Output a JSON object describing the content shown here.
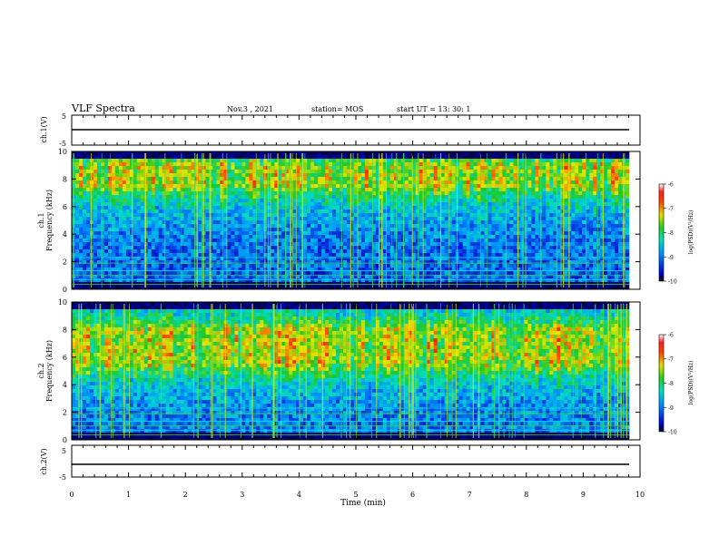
{
  "header": {
    "title": "VLF Spectra",
    "date": "Nov.3 , 2021",
    "station": "station= MOS",
    "start": "start UT = 13: 30: 1"
  },
  "chart_data": [
    {
      "type": "line",
      "name": "waveform-ch1",
      "ylabel": "ch.1(V)",
      "ylim": [
        -5,
        5
      ],
      "yticks": [
        "5",
        "-5"
      ],
      "xlim": [
        0,
        10
      ],
      "values_level": 0
    },
    {
      "type": "heatmap",
      "name": "spectrogram-ch1",
      "ylabel_line1": "ch.1",
      "ylabel_line2": "Frequency (kHz)",
      "ylim": [
        0,
        10
      ],
      "yticks": [
        "0",
        "2",
        "4",
        "6",
        "8",
        "10"
      ],
      "xlim": [
        0,
        9.82
      ],
      "colorbar": {
        "label": "log(PSD)(V²/Hz)",
        "range": [
          -10,
          -6
        ],
        "ticks": [
          "-6",
          "-7",
          "-8",
          "-9",
          "-10"
        ]
      },
      "dominant_band_khz": [
        7.5,
        9.0
      ]
    },
    {
      "type": "heatmap",
      "name": "spectrogram-ch2",
      "ylabel_line1": "ch.2",
      "ylabel_line2": "Frequency (kHz)",
      "ylim": [
        0,
        10
      ],
      "yticks": [
        "0",
        "2",
        "4",
        "6",
        "8",
        "10"
      ],
      "xlim": [
        0,
        9.82
      ],
      "colorbar": {
        "label": "log(PSD)(V²/Hz)",
        "range": [
          -10,
          -6
        ],
        "ticks": [
          "-6",
          "-7",
          "-8",
          "-9",
          "-10"
        ]
      },
      "dominant_band_khz": [
        5.5,
        8.0
      ]
    },
    {
      "type": "line",
      "name": "waveform-ch2",
      "ylabel": "ch.2(V)",
      "ylim": [
        -5,
        5
      ],
      "yticks": [
        "5",
        "-5"
      ],
      "xlim": [
        0,
        10
      ],
      "values_level": 0
    }
  ],
  "xaxis": {
    "label": "Time (min)",
    "ticks": [
      "0",
      "1",
      "2",
      "3",
      "4",
      "5",
      "6",
      "7",
      "8",
      "9",
      "10"
    ]
  }
}
